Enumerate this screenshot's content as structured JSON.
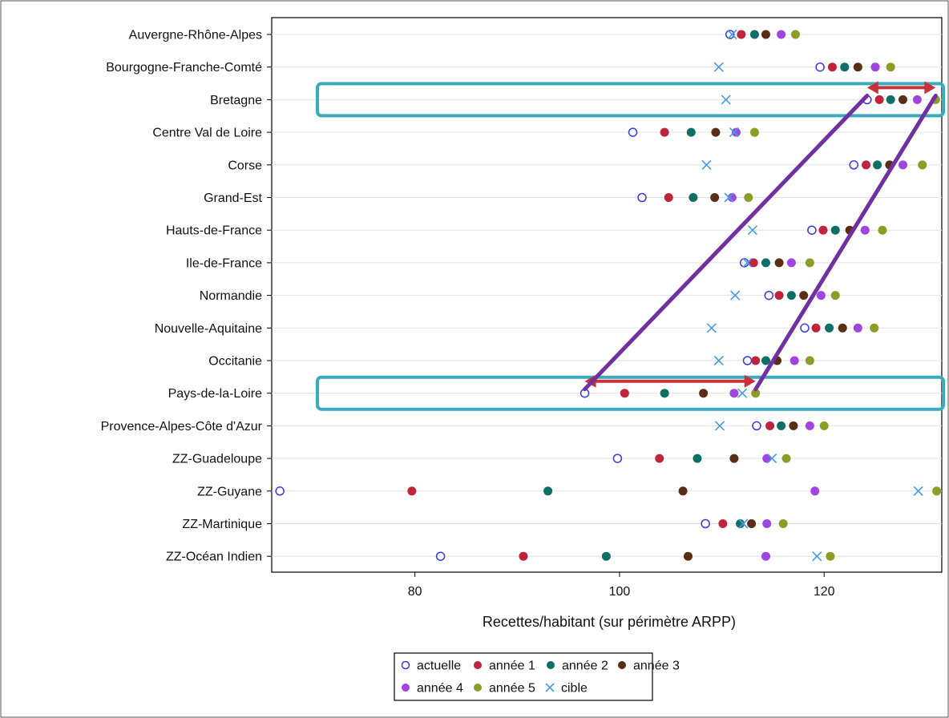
{
  "chart_data": {
    "type": "scatter",
    "orientation": "horizontal dot plot",
    "categories": [
      "Auvergne-Rhône-Alpes",
      "Bourgogne-Franche-Comté",
      "Bretagne",
      "Centre Val de Loire",
      "Corse",
      "Grand-Est",
      "Hauts-de-France",
      "Ile-de-France",
      "Normandie",
      "Nouvelle-Aquitaine",
      "Occitanie",
      "Pays-de-la-Loire",
      "Provence-Alpes-Côte d'Azur",
      "ZZ-Guadeloupe",
      "ZZ-Guyane",
      "ZZ-Martinique",
      "ZZ-Océan Indien"
    ],
    "xlabel": "Recettes/habitant (sur périmètre ARPP)",
    "xlim": [
      66,
      131.5
    ],
    "xticks": [
      80,
      100,
      120
    ],
    "grid": "horizontal lines at each category",
    "legend_position": "bottom",
    "series": [
      {
        "name": "actuelle",
        "marker": "circle-open",
        "color": "#3a3ae0",
        "values": [
          110.8,
          119.6,
          124.2,
          101.3,
          122.9,
          102.2,
          118.8,
          112.2,
          114.6,
          118.1,
          112.5,
          96.6,
          113.4,
          99.8,
          66.8,
          108.4,
          82.5
        ]
      },
      {
        "name": "année 1",
        "marker": "circle",
        "color": "#c0243c",
        "values": [
          111.9,
          120.8,
          125.4,
          104.4,
          124.1,
          104.8,
          119.9,
          113.1,
          115.6,
          119.2,
          113.3,
          100.5,
          114.7,
          103.9,
          79.7,
          110.1,
          90.6
        ]
      },
      {
        "name": "année 2",
        "marker": "circle",
        "color": "#0f6e66",
        "values": [
          113.2,
          122.0,
          126.5,
          107.0,
          125.2,
          107.2,
          121.1,
          114.3,
          116.8,
          120.5,
          114.3,
          104.4,
          115.8,
          107.6,
          93.0,
          111.8,
          98.7
        ]
      },
      {
        "name": "année 3",
        "marker": "circle",
        "color": "#5a2e14",
        "values": [
          114.3,
          123.3,
          127.7,
          109.4,
          126.4,
          109.3,
          122.5,
          115.6,
          118.0,
          121.8,
          115.4,
          108.2,
          117.0,
          111.2,
          106.2,
          112.9,
          106.7
        ]
      },
      {
        "name": "année 4",
        "marker": "circle",
        "color": "#a045e0",
        "values": [
          115.8,
          125.0,
          129.1,
          111.4,
          127.7,
          111.0,
          124.0,
          116.8,
          119.7,
          123.3,
          117.1,
          111.2,
          118.6,
          114.4,
          119.1,
          114.4,
          114.3
        ]
      },
      {
        "name": "année 5",
        "marker": "circle",
        "color": "#8c9c26",
        "values": [
          117.2,
          126.5,
          130.9,
          113.2,
          129.6,
          112.6,
          125.7,
          118.6,
          121.1,
          124.9,
          118.6,
          113.3,
          120.0,
          116.3,
          131.0,
          116.0,
          120.6
        ]
      },
      {
        "name": "cible",
        "marker": "x",
        "color": "#4a9be0",
        "values": [
          111.0,
          109.7,
          110.4,
          111.2,
          108.5,
          110.7,
          113.0,
          112.5,
          111.3,
          109.0,
          109.7,
          112.0,
          109.8,
          114.9,
          129.2,
          112.1,
          119.3
        ]
      }
    ],
    "annotations": [
      {
        "type": "highlight-box",
        "category": "Bretagne",
        "color": "#3aaabf"
      },
      {
        "type": "highlight-box",
        "category": "Pays-de-la-Loire",
        "color": "#3aaabf"
      },
      {
        "type": "double-arrow",
        "category": "Bretagne",
        "from": 124.2,
        "to": 130.9,
        "color": "#c8303c"
      },
      {
        "type": "double-arrow",
        "category": "Pays-de-la-Loire",
        "from": 96.6,
        "to": 113.3,
        "color": "#c8303c"
      },
      {
        "type": "parallelogram-lines",
        "from_category": "Bretagne",
        "to_category": "Pays-de-la-Loire",
        "color": "#7030a0"
      }
    ]
  }
}
